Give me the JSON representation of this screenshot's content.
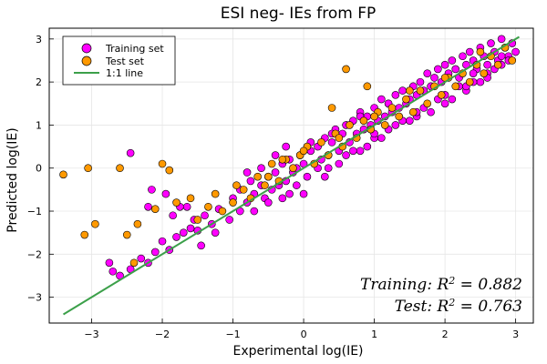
{
  "chart_data": {
    "type": "scatter",
    "title": "ESI neg- IEs from FP",
    "xlabel": "Experimental log(IE)",
    "ylabel": "Predicted log(IE)",
    "xlim": [
      -3.6,
      3.25
    ],
    "ylim": [
      -3.6,
      3.25
    ],
    "xticks": [
      -3,
      -2,
      -1,
      0,
      1,
      2,
      3
    ],
    "yticks": [
      -3,
      -2,
      -1,
      0,
      1,
      2,
      3
    ],
    "tick_labels": [
      "−3",
      "−2",
      "−1",
      "0",
      "1",
      "2",
      "3"
    ],
    "grid": true,
    "legend_position": "top-left",
    "legend": [
      "Training set",
      "Test set",
      "1:1 line"
    ],
    "colors": {
      "training": "#ff00ff",
      "test": "#ff9900",
      "line": "#3ca04a"
    },
    "annotations": [
      {
        "label": "Training",
        "expr": "R",
        "sup": "2",
        "value": "0.882"
      },
      {
        "label": "Test",
        "expr": "R",
        "sup": "2",
        "value": "0.763"
      }
    ],
    "line": {
      "name": "1:1 line",
      "x": [
        -3.4,
        3.05
      ],
      "y": [
        -3.4,
        3.05
      ]
    },
    "series": [
      {
        "name": "Training set",
        "x": [
          -2.7,
          -2.75,
          -2.6,
          -2.45,
          -2.3,
          -2.2,
          -2.1,
          -2.0,
          -1.9,
          -1.8,
          -1.7,
          -1.6,
          -1.55,
          -1.5,
          -1.4,
          -1.3,
          -1.2,
          -2.45,
          -2.15,
          -1.95,
          -1.75,
          -1.0,
          -0.9,
          -0.8,
          -0.75,
          -0.7,
          -0.6,
          -0.55,
          -0.5,
          -0.45,
          -0.4,
          -0.35,
          -0.3,
          -0.25,
          -0.2,
          -0.15,
          -0.1,
          -0.05,
          0.0,
          0.05,
          0.1,
          0.15,
          0.2,
          0.25,
          0.3,
          0.35,
          0.4,
          0.45,
          0.5,
          0.55,
          0.6,
          0.65,
          0.7,
          0.75,
          0.8,
          0.85,
          0.9,
          0.95,
          1.0,
          1.05,
          1.1,
          1.15,
          1.2,
          1.25,
          1.3,
          1.35,
          1.4,
          1.45,
          1.5,
          1.55,
          1.6,
          1.65,
          1.7,
          1.75,
          1.8,
          1.85,
          1.9,
          1.95,
          2.0,
          2.05,
          2.1,
          2.15,
          2.2,
          2.25,
          2.3,
          2.35,
          2.4,
          2.45,
          2.5,
          2.55,
          2.6,
          2.65,
          2.7,
          2.75,
          2.8,
          2.85,
          2.9,
          2.95,
          3.0,
          -0.8,
          -0.6,
          -0.4,
          -0.2,
          0.1,
          0.3,
          0.6,
          0.9,
          1.1,
          1.3,
          1.6,
          1.8,
          2.1,
          2.3,
          2.5,
          2.7,
          2.9,
          -0.9,
          -0.5,
          -0.1,
          0.2,
          0.5,
          0.8,
          1.0,
          1.2,
          1.5,
          1.7,
          2.0,
          2.2,
          2.4,
          2.6,
          2.8,
          -2.2,
          -1.85,
          -1.65,
          -1.45,
          -1.25,
          -1.05,
          -0.25,
          0.0,
          0.35,
          0.7,
          1.0,
          1.4,
          1.9,
          2.3,
          2.6,
          -0.7,
          -0.3,
          0.4,
          0.8,
          1.2,
          1.6,
          2.0,
          2.4,
          2.8
        ],
        "y": [
          -2.4,
          -2.2,
          -2.5,
          -2.35,
          -2.1,
          -2.2,
          -1.95,
          -1.7,
          -1.9,
          -1.6,
          -1.5,
          -1.4,
          -1.2,
          -1.45,
          -1.1,
          -1.3,
          -0.95,
          0.35,
          -0.5,
          -0.6,
          -0.9,
          -0.7,
          -0.5,
          -0.8,
          -0.3,
          -0.6,
          -0.4,
          -0.7,
          -0.2,
          -0.5,
          -0.1,
          -0.4,
          0.1,
          -0.3,
          0.2,
          -0.1,
          0.0,
          0.3,
          0.1,
          -0.2,
          0.4,
          0.1,
          0.5,
          0.2,
          0.7,
          0.3,
          0.6,
          0.9,
          0.4,
          0.8,
          1.0,
          0.6,
          1.1,
          0.8,
          1.3,
          0.9,
          1.2,
          1.0,
          1.4,
          1.1,
          1.6,
          1.2,
          1.5,
          1.3,
          1.7,
          1.4,
          1.8,
          1.5,
          1.6,
          1.9,
          1.7,
          2.0,
          1.8,
          2.2,
          1.9,
          2.1,
          2.3,
          2.0,
          2.4,
          2.2,
          2.5,
          2.3,
          2.1,
          2.6,
          2.4,
          2.7,
          2.5,
          2.3,
          2.8,
          2.6,
          2.4,
          2.9,
          2.7,
          2.5,
          3.0,
          2.8,
          2.6,
          2.9,
          2.7,
          -0.1,
          0.0,
          0.3,
          -0.6,
          0.6,
          -0.2,
          0.3,
          0.5,
          0.7,
          1.0,
          1.2,
          1.3,
          1.6,
          1.8,
          2.0,
          2.3,
          2.5,
          -1.0,
          -0.8,
          -0.4,
          0.0,
          0.1,
          0.4,
          0.7,
          0.9,
          1.1,
          1.4,
          1.5,
          1.9,
          2.0,
          2.2,
          2.4,
          -0.9,
          -1.1,
          -0.9,
          -1.8,
          -1.5,
          -1.2,
          0.5,
          -0.6,
          0.0,
          0.4,
          0.8,
          1.1,
          1.6,
          1.9,
          2.1,
          -1.0,
          -0.7,
          0.8,
          1.2,
          1.5,
          1.3,
          1.7,
          2.2,
          2.6
        ]
      },
      {
        "name": "Test set",
        "x": [
          -3.4,
          -3.1,
          -3.05,
          -2.95,
          -2.6,
          -2.5,
          -2.4,
          -2.35,
          -2.1,
          -2.0,
          -1.9,
          -1.8,
          -1.6,
          -1.5,
          -1.35,
          -1.25,
          -1.15,
          -1.0,
          -0.95,
          -0.85,
          -0.75,
          -0.65,
          -0.55,
          -0.45,
          -0.35,
          -0.25,
          -0.15,
          -0.05,
          0.05,
          0.15,
          0.25,
          0.35,
          0.45,
          0.55,
          0.65,
          0.75,
          0.85,
          0.95,
          1.05,
          1.15,
          1.25,
          1.35,
          1.45,
          1.55,
          1.65,
          1.75,
          1.85,
          1.95,
          2.05,
          2.15,
          2.25,
          2.35,
          2.45,
          2.55,
          2.65,
          2.75,
          2.85,
          2.95,
          -0.5,
          0.0,
          0.5,
          1.0,
          1.5,
          2.0,
          2.5,
          0.6,
          0.4,
          -0.3,
          0.9
        ],
        "y": [
          -0.15,
          -1.55,
          0.0,
          -1.3,
          0.0,
          -1.55,
          -2.2,
          -1.3,
          -0.95,
          0.1,
          -0.05,
          -0.8,
          -0.7,
          -1.2,
          -0.9,
          -0.6,
          -1.0,
          -0.8,
          -0.4,
          -0.5,
          -0.7,
          -0.2,
          -0.4,
          0.1,
          -0.3,
          0.2,
          0.0,
          0.3,
          0.5,
          0.1,
          0.6,
          0.3,
          0.8,
          0.5,
          1.0,
          0.7,
          1.1,
          0.9,
          1.3,
          1.0,
          1.4,
          1.2,
          1.6,
          1.3,
          1.8,
          1.5,
          1.9,
          1.7,
          2.1,
          1.9,
          2.2,
          2.0,
          2.4,
          2.2,
          2.6,
          2.4,
          2.8,
          2.5,
          -0.2,
          0.4,
          0.7,
          1.2,
          1.8,
          2.1,
          2.7,
          2.3,
          1.4,
          0.2,
          1.9
        ]
      }
    ]
  }
}
